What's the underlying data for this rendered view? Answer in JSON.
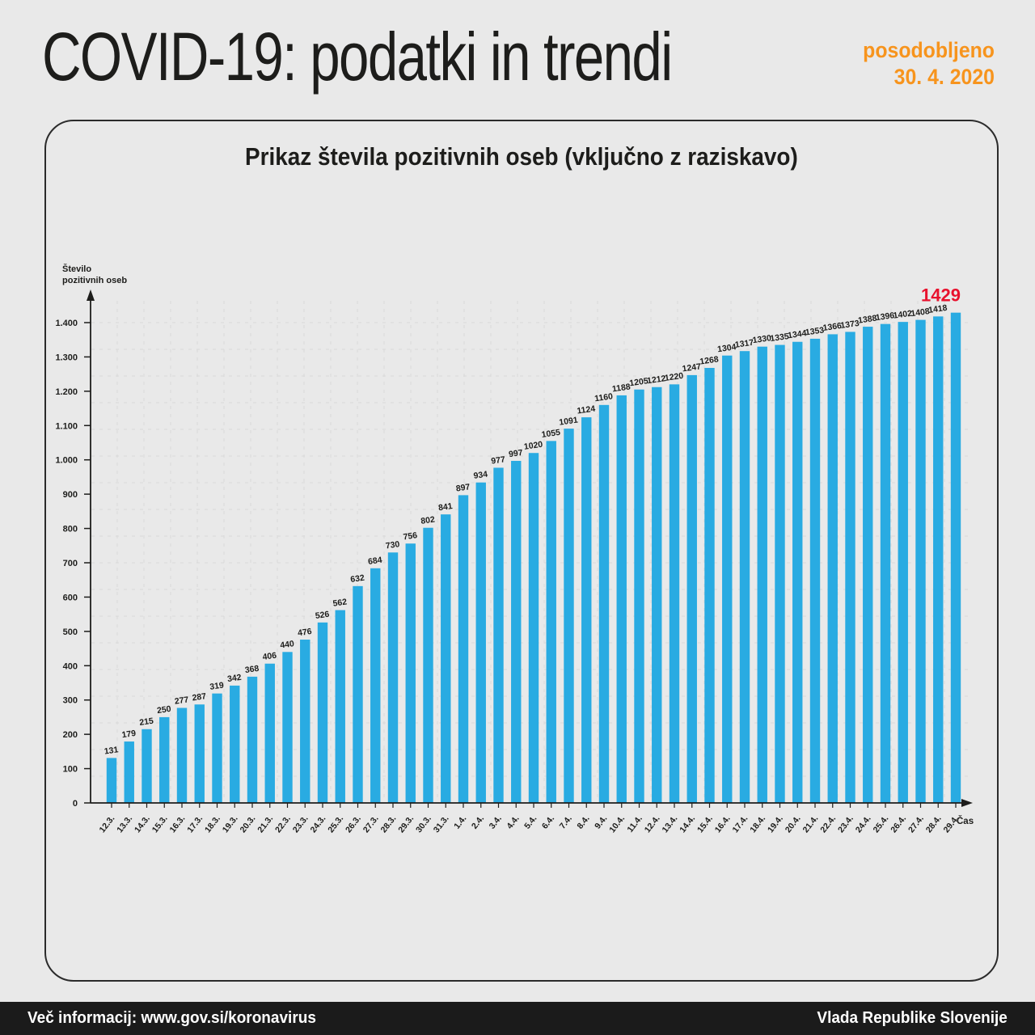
{
  "header": {
    "title": "COVID-19: podatki in trendi",
    "updated_label": "posodobljeno",
    "updated_date": "30. 4. 2020"
  },
  "card": {
    "title": "Prikaz števila pozitivnih oseb (vključno z raziskavo)"
  },
  "chart_data": {
    "type": "bar",
    "title": "Prikaz števila pozitivnih oseb (vključno z raziskavo)",
    "ylabel": "Število\npozitivnih oseb",
    "ylabel_line1": "Število",
    "ylabel_line2": "pozitivnih oseb",
    "xlabel": "Čas",
    "categories": [
      "12.3.",
      "13.3.",
      "14.3.",
      "15.3.",
      "16.3.",
      "17.3.",
      "18.3.",
      "19.3.",
      "20.3.",
      "21.3.",
      "22.3.",
      "23.3.",
      "24.3.",
      "25.3.",
      "26.3.",
      "27.3.",
      "28.3.",
      "29.3.",
      "30.3.",
      "31.3.",
      "1.4.",
      "2.4.",
      "3.4.",
      "4.4.",
      "5.4.",
      "6.4.",
      "7.4.",
      "8.4.",
      "9.4.",
      "10.4.",
      "11.4.",
      "12.4.",
      "13.4.",
      "14.4.",
      "15.4.",
      "16.4.",
      "17.4.",
      "18.4.",
      "19.4.",
      "20.4.",
      "21.4.",
      "22.4.",
      "23.4.",
      "24.4.",
      "25.4.",
      "26.4.",
      "27.4.",
      "28.4.",
      "29.4."
    ],
    "values": [
      131,
      179,
      215,
      250,
      277,
      287,
      319,
      342,
      368,
      406,
      440,
      476,
      526,
      562,
      632,
      684,
      730,
      756,
      802,
      841,
      897,
      934,
      977,
      997,
      1020,
      1055,
      1091,
      1124,
      1160,
      1188,
      1205,
      1212,
      1220,
      1247,
      1268,
      1304,
      1317,
      1330,
      1335,
      1344,
      1353,
      1366,
      1373,
      1388,
      1396,
      1402,
      1408,
      1418,
      1429
    ],
    "ylim": [
      0,
      1450
    ],
    "ytick_step": 100,
    "ytick_max": 1400,
    "grid": "dashed",
    "legend": "none",
    "bar_color": "#29abe2",
    "axis_color": "#1d1d1b",
    "grid_color": "#d9d9d9",
    "highlight_last_color": "#e8112d",
    "highlight_last_label": "1429"
  },
  "footer": {
    "left": "Več informacij: www.gov.si/koronavirus",
    "right": "Vlada Republike Slovenije"
  },
  "colors": {
    "background": "#e9e9e9",
    "accent_orange": "#f7941d",
    "bar_blue": "#29abe2",
    "highlight_red": "#e8112d",
    "footer_black": "#1b1b1b"
  }
}
